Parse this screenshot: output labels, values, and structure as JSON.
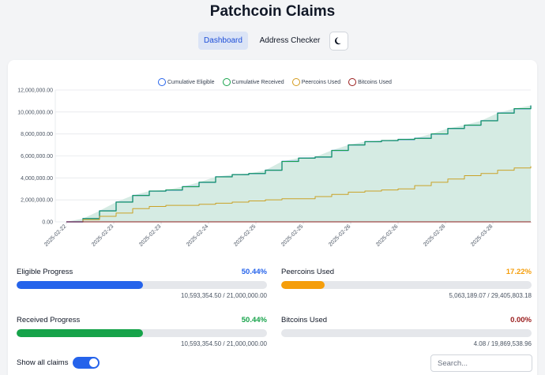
{
  "app": {
    "title": "Patchcoin Claims"
  },
  "nav": {
    "dashboard": "Dashboard",
    "address_checker": "Address Checker",
    "theme_icon": "moon-icon"
  },
  "colors": {
    "eligible": "#2563eb",
    "received": "#16a34a",
    "peercoins": "#f59e0b",
    "bitcoins": "#991b1b",
    "received_fill": "#d5ebe3",
    "peercoin_line": "#c9a227",
    "bitcoin_line": "#8b1d1d"
  },
  "chart_data": {
    "type": "line",
    "title": "",
    "xlabel": "",
    "ylabel": "",
    "ylim": [
      0,
      12000000
    ],
    "yticks": [
      "0.00",
      "2,000,000.00",
      "4,000,000.00",
      "6,000,000.00",
      "8,000,000.00",
      "10,000,000.00",
      "12,000,000.00"
    ],
    "xticks": [
      "2025-02-22",
      "2025-02-23",
      "2025-02-23",
      "2025-02-24",
      "2025-02-25",
      "2025-02-25",
      "2025-02-26",
      "2025-02-26",
      "2025-02-28",
      "2025-03-28"
    ],
    "legend_position": "top",
    "grid": true,
    "series": [
      {
        "name": "Cumulative Eligible",
        "values": [
          0,
          300000,
          1000000,
          1800000,
          2400000,
          2800000,
          2900000,
          3200000,
          3600000,
          4100000,
          4300000,
          4400000,
          4700000,
          5500000,
          5800000,
          5900000,
          6500000,
          7000000,
          7300000,
          7400000,
          7500000,
          7600000,
          8000000,
          8500000,
          8800000,
          9200000,
          9900000,
          10300000,
          10593354.5
        ]
      },
      {
        "name": "Cumulative Received",
        "values": [
          0,
          300000,
          1000000,
          1800000,
          2400000,
          2800000,
          2900000,
          3200000,
          3600000,
          4100000,
          4300000,
          4400000,
          4700000,
          5500000,
          5800000,
          5900000,
          6500000,
          7000000,
          7300000,
          7400000,
          7500000,
          7600000,
          8000000,
          8500000,
          8800000,
          9200000,
          9900000,
          10300000,
          10593354.5
        ]
      },
      {
        "name": "Peercoins Used",
        "values": [
          0,
          200000,
          500000,
          800000,
          1200000,
          1400000,
          1500000,
          1500000,
          1600000,
          1700000,
          1800000,
          1900000,
          2000000,
          2100000,
          2100000,
          2300000,
          2500000,
          2700000,
          2800000,
          2900000,
          3000000,
          3300000,
          3600000,
          3900000,
          4200000,
          4400000,
          4700000,
          4900000,
          5063189.07
        ]
      },
      {
        "name": "Bitcoins Used",
        "values": [
          0,
          0,
          0,
          0,
          0,
          0,
          0,
          0,
          0,
          0,
          0,
          0,
          0,
          0,
          0,
          0,
          0,
          0,
          0,
          0,
          0,
          0,
          0,
          0,
          0,
          0,
          0,
          0,
          4.08
        ]
      }
    ]
  },
  "progress": {
    "eligible": {
      "label": "Eligible Progress",
      "pct": "50.44%",
      "fraction": 0.5044,
      "detail": "10,593,354.50 / 21,000,000.00"
    },
    "peercoins": {
      "label": "Peercoins Used",
      "pct": "17.22%",
      "fraction": 0.1722,
      "detail": "5,063,189.07 / 29,405,803.18"
    },
    "received": {
      "label": "Received Progress",
      "pct": "50.44%",
      "fraction": 0.5044,
      "detail": "10,593,354.50 / 21,000,000.00"
    },
    "bitcoins": {
      "label": "Bitcoins Used",
      "pct": "0.00%",
      "fraction": 0.0,
      "detail": "4.08 / 19,869,538.96"
    }
  },
  "footer": {
    "show_all_label": "Show all claims",
    "show_all_on": true,
    "search_placeholder": "Search..."
  }
}
